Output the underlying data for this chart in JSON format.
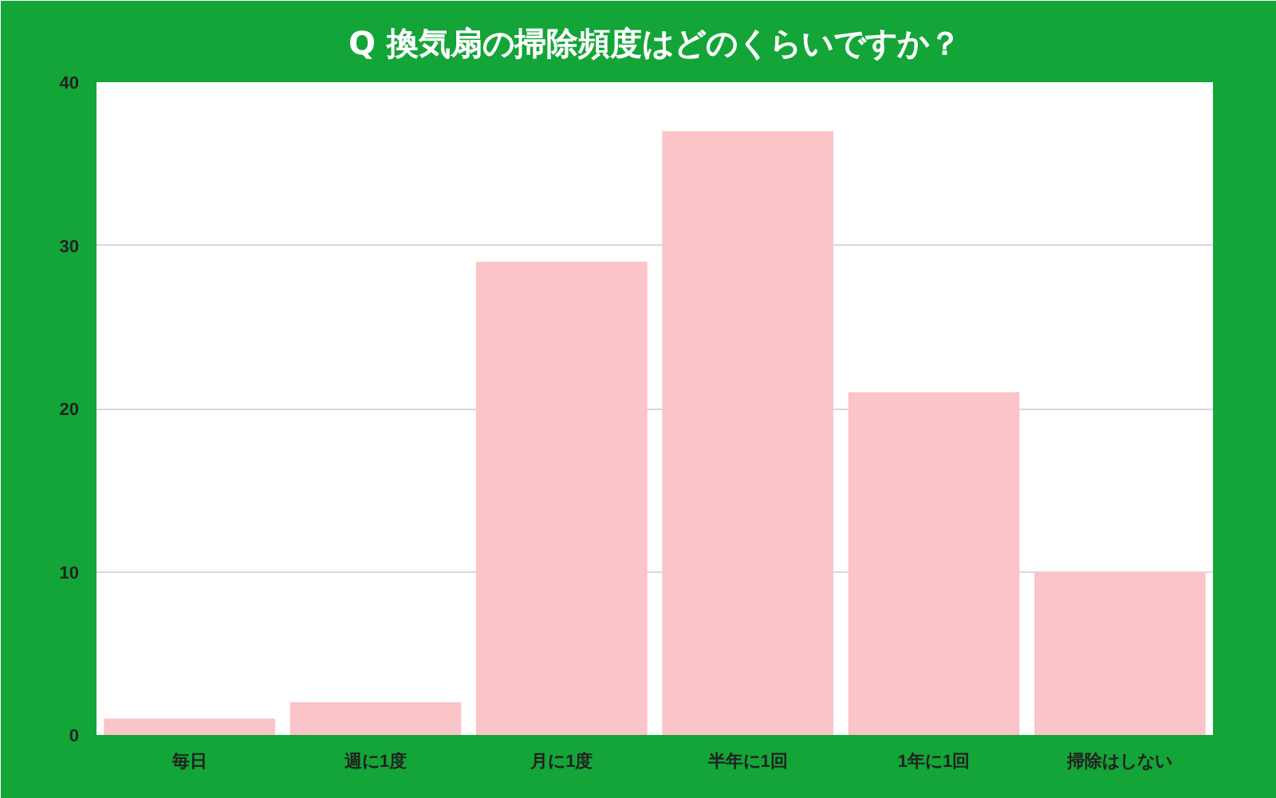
{
  "chart_data": {
    "type": "bar",
    "title": "Q 換気扇の掃除頻度はどのくらいですか？",
    "categories": [
      "毎日",
      "週に1度",
      "月に1度",
      "半年に1回",
      "1年に1回",
      "掃除はしない"
    ],
    "values": [
      1,
      2,
      29,
      37,
      21,
      10
    ],
    "color": "#fbc4c8",
    "ylim": [
      0,
      40
    ],
    "yticks": [
      0,
      10,
      20,
      30,
      40
    ],
    "grid": "y"
  }
}
